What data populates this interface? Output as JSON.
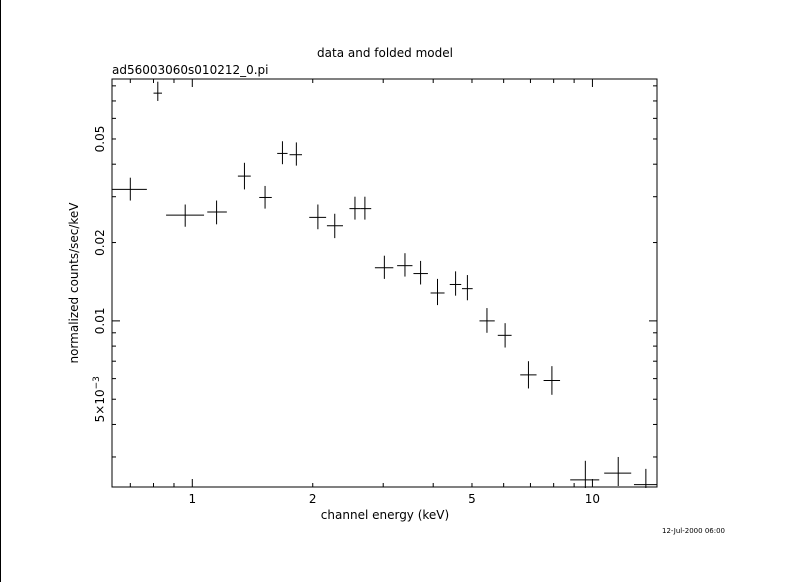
{
  "chart_data": {
    "type": "scatter",
    "title": "data and folded model",
    "subtitle": "ad56003060s010212_0.pi",
    "xlabel": "channel energy (keV)",
    "ylabel": "normalized counts/sec/keV",
    "timestamp": "12-Jul-2000 06:00",
    "x_scale": "log",
    "y_scale": "log",
    "xlim": [
      0.63,
      14.5
    ],
    "ylim": [
      0.0023,
      0.085
    ],
    "x_tick_labels": [
      {
        "value": 1,
        "label": "1"
      },
      {
        "value": 2,
        "label": "2"
      },
      {
        "value": 5,
        "label": "5"
      },
      {
        "value": 10,
        "label": "10"
      }
    ],
    "y_tick_labels": [
      {
        "value": 0.005,
        "label": "5×10",
        "exp": "−3"
      },
      {
        "value": 0.01,
        "label": "0.01"
      },
      {
        "value": 0.02,
        "label": "0.02"
      },
      {
        "value": 0.05,
        "label": "0.05"
      }
    ],
    "series": [
      {
        "points": [
          {
            "x": 0.7,
            "xlo": 0.63,
            "xhi": 0.77,
            "y": 0.032,
            "ylo": 0.029,
            "yhi": 0.0355
          },
          {
            "x": 0.82,
            "xlo": 0.8,
            "xhi": 0.84,
            "y": 0.075,
            "ylo": 0.07,
            "yhi": 0.083
          },
          {
            "x": 0.96,
            "xlo": 0.86,
            "xhi": 1.07,
            "y": 0.0255,
            "ylo": 0.023,
            "yhi": 0.028
          },
          {
            "x": 1.15,
            "xlo": 1.09,
            "xhi": 1.22,
            "y": 0.0262,
            "ylo": 0.0235,
            "yhi": 0.029
          },
          {
            "x": 1.35,
            "xlo": 1.3,
            "xhi": 1.4,
            "y": 0.036,
            "ylo": 0.032,
            "yhi": 0.0405
          },
          {
            "x": 1.52,
            "xlo": 1.47,
            "xhi": 1.58,
            "y": 0.0298,
            "ylo": 0.027,
            "yhi": 0.033
          },
          {
            "x": 1.68,
            "xlo": 1.63,
            "xhi": 1.73,
            "y": 0.044,
            "ylo": 0.04,
            "yhi": 0.049
          },
          {
            "x": 1.82,
            "xlo": 1.75,
            "xhi": 1.88,
            "y": 0.0435,
            "ylo": 0.0395,
            "yhi": 0.0485
          },
          {
            "x": 2.06,
            "xlo": 1.96,
            "xhi": 2.16,
            "y": 0.025,
            "ylo": 0.0225,
            "yhi": 0.028
          },
          {
            "x": 2.27,
            "xlo": 2.17,
            "xhi": 2.38,
            "y": 0.0232,
            "ylo": 0.0208,
            "yhi": 0.0258
          },
          {
            "x": 2.55,
            "xlo": 2.47,
            "xhi": 2.63,
            "y": 0.027,
            "ylo": 0.0245,
            "yhi": 0.03
          },
          {
            "x": 2.7,
            "xlo": 2.63,
            "xhi": 2.8,
            "y": 0.027,
            "ylo": 0.0245,
            "yhi": 0.03
          },
          {
            "x": 3.02,
            "xlo": 2.86,
            "xhi": 3.18,
            "y": 0.016,
            "ylo": 0.0145,
            "yhi": 0.0178
          },
          {
            "x": 3.4,
            "xlo": 3.25,
            "xhi": 3.55,
            "y": 0.0163,
            "ylo": 0.0148,
            "yhi": 0.0182
          },
          {
            "x": 3.72,
            "xlo": 3.57,
            "xhi": 3.88,
            "y": 0.0152,
            "ylo": 0.0138,
            "yhi": 0.017
          },
          {
            "x": 4.1,
            "xlo": 3.94,
            "xhi": 4.27,
            "y": 0.0128,
            "ylo": 0.0115,
            "yhi": 0.0145
          },
          {
            "x": 4.55,
            "xlo": 4.4,
            "xhi": 4.7,
            "y": 0.0138,
            "ylo": 0.0125,
            "yhi": 0.0155
          },
          {
            "x": 4.87,
            "xlo": 4.72,
            "xhi": 5.02,
            "y": 0.0133,
            "ylo": 0.012,
            "yhi": 0.015
          },
          {
            "x": 5.45,
            "xlo": 5.22,
            "xhi": 5.7,
            "y": 0.01,
            "ylo": 0.009,
            "yhi": 0.0112
          },
          {
            "x": 6.05,
            "xlo": 5.8,
            "xhi": 6.28,
            "y": 0.0088,
            "ylo": 0.0079,
            "yhi": 0.0098
          },
          {
            "x": 6.92,
            "xlo": 6.6,
            "xhi": 7.25,
            "y": 0.0062,
            "ylo": 0.0055,
            "yhi": 0.007
          },
          {
            "x": 7.92,
            "xlo": 7.55,
            "xhi": 8.3,
            "y": 0.0059,
            "ylo": 0.0052,
            "yhi": 0.0067
          },
          {
            "x": 9.6,
            "xlo": 8.8,
            "xhi": 10.4,
            "y": 0.00245,
            "ylo": 0.00228,
            "yhi": 0.0029
          },
          {
            "x": 11.6,
            "xlo": 10.7,
            "xhi": 12.5,
            "y": 0.0026,
            "ylo": 0.00232,
            "yhi": 0.003
          },
          {
            "x": 13.6,
            "xlo": 12.7,
            "xhi": 14.5,
            "y": 0.00235,
            "ylo": 0.00228,
            "yhi": 0.0027
          }
        ]
      }
    ]
  }
}
